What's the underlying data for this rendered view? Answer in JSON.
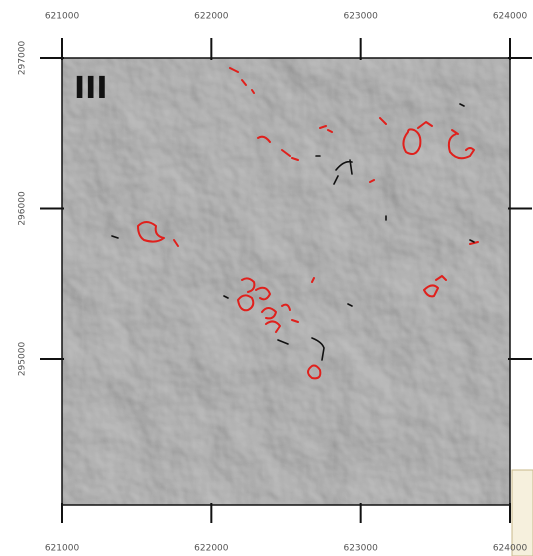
{
  "map": {
    "panel_label": "III",
    "xlim": [
      621000,
      624000
    ],
    "ylim": [
      294030,
      297000
    ],
    "xticks": [
      621000,
      622000,
      623000,
      624000
    ],
    "yticks": [
      295000,
      296000,
      297000
    ]
  }
}
